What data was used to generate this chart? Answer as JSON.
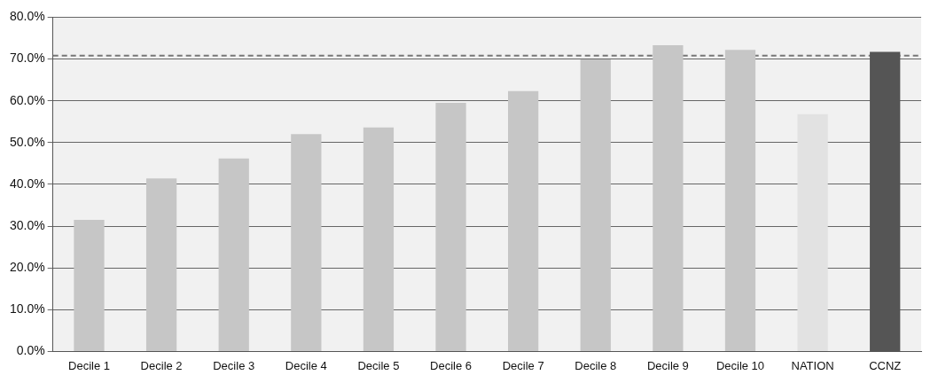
{
  "chart_data": {
    "type": "bar",
    "categories": [
      "Decile 1",
      "Decile 2",
      "Decile 3",
      "Decile 4",
      "Decile 5",
      "Decile 6",
      "Decile 7",
      "Decile 8",
      "Decile 9",
      "Decile 10",
      "NATION",
      "CCNZ"
    ],
    "values": [
      31.5,
      41.4,
      46.2,
      52.0,
      53.6,
      59.5,
      62.3,
      69.9,
      73.3,
      72.2,
      56.8,
      71.7
    ],
    "colors": [
      "#c6c6c6",
      "#c6c6c6",
      "#c6c6c6",
      "#c6c6c6",
      "#c6c6c6",
      "#c6c6c6",
      "#c6c6c6",
      "#c6c6c6",
      "#c6c6c6",
      "#c6c6c6",
      "#e2e2e2",
      "#555555"
    ],
    "ylim": [
      0,
      80
    ],
    "yticks": [
      {
        "value": 0,
        "label": "0.0%"
      },
      {
        "value": 10,
        "label": "10.0%"
      },
      {
        "value": 20,
        "label": "20.0%"
      },
      {
        "value": 30,
        "label": "30.0%"
      },
      {
        "value": 40,
        "label": "40.0%"
      },
      {
        "value": 50,
        "label": "50.0%"
      },
      {
        "value": 60,
        "label": "60.0%"
      },
      {
        "value": 70,
        "label": "70.0%"
      },
      {
        "value": 80,
        "label": "80.0%"
      }
    ],
    "grid": "y",
    "ref_lines": [
      {
        "axis": "y",
        "value": 70.8,
        "color": "#777777",
        "line_style": "dashed"
      }
    ]
  }
}
